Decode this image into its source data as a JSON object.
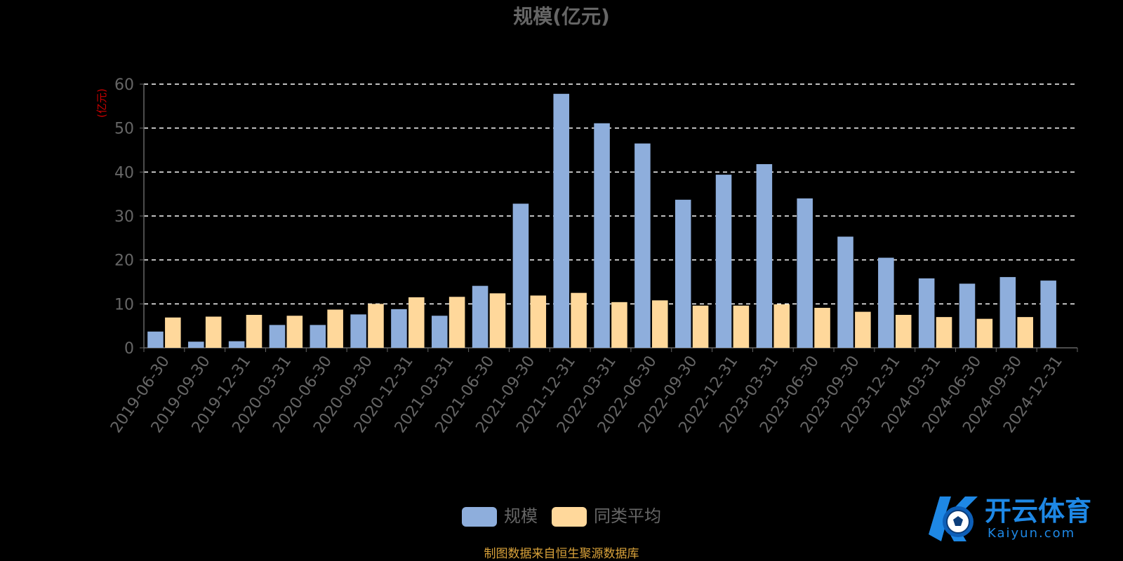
{
  "chart_data": {
    "type": "bar",
    "title": "规模(亿元)",
    "ylabel": "(亿元)",
    "ylim": [
      0,
      60
    ],
    "yticks": [
      0,
      10,
      20,
      30,
      40,
      50,
      60
    ],
    "categories": [
      "2019-06-30",
      "2019-09-30",
      "2019-12-31",
      "2020-03-31",
      "2020-06-30",
      "2020-09-30",
      "2020-12-31",
      "2021-03-31",
      "2021-06-30",
      "2021-09-30",
      "2021-12-31",
      "2022-03-31",
      "2022-06-30",
      "2022-09-30",
      "2022-12-31",
      "2023-03-31",
      "2023-06-30",
      "2023-09-30",
      "2023-12-31",
      "2024-03-31",
      "2024-06-30",
      "2024-09-30",
      "2024-12-31"
    ],
    "series": [
      {
        "name": "规模",
        "color": "#8eaedc",
        "values": [
          3.7,
          1.4,
          1.5,
          5.2,
          5.2,
          7.6,
          8.8,
          7.3,
          14.1,
          32.8,
          57.8,
          51.1,
          46.5,
          33.7,
          39.4,
          41.8,
          34.0,
          25.3,
          20.5,
          15.8,
          14.6,
          16.1,
          15.3
        ]
      },
      {
        "name": "同类平均",
        "color": "#ffd89b",
        "values": [
          6.9,
          7.1,
          7.5,
          7.3,
          8.7,
          10.0,
          11.5,
          11.6,
          12.4,
          11.9,
          12.5,
          10.4,
          10.8,
          9.6,
          9.6,
          9.9,
          9.1,
          8.2,
          7.5,
          7.0,
          6.6,
          7.0,
          null
        ]
      }
    ],
    "grid": true,
    "legend_position": "bottom-center"
  },
  "footer": {
    "source_text": "制图数据来自恒生聚源数据库"
  },
  "logo": {
    "cn_text": "开云体育",
    "en_text": "Kaiyun.com"
  },
  "colors": {
    "title": "#666666",
    "axis_text": "#666666",
    "ylabel": "#cc0000",
    "gridline": "#ffffff",
    "source": "#d9a23a",
    "logo_blue": "#1e88e5"
  }
}
